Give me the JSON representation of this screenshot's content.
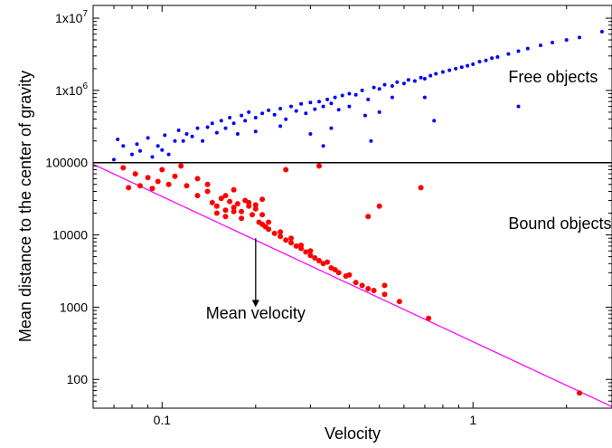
{
  "chart_data": {
    "type": "scatter",
    "title": "",
    "xlabel": "Velocity",
    "ylabel": "Mean distance to the center of gravity",
    "xscale": "log",
    "yscale": "log",
    "xlim": [
      0.06,
      2.8
    ],
    "ylim": [
      40,
      15000000
    ],
    "grid": false,
    "x_ticks": [
      {
        "value": 0.1,
        "label": "0.1"
      },
      {
        "value": 1,
        "label": "1"
      }
    ],
    "y_ticks": [
      {
        "value": 100,
        "label": "100"
      },
      {
        "value": 1000,
        "label": "1000"
      },
      {
        "value": 10000,
        "label": "10000"
      },
      {
        "value": 100000,
        "label": "100000"
      },
      {
        "value": 1000000,
        "label": "1x10",
        "exp": "6"
      },
      {
        "value": 10000000,
        "label": "1x10",
        "exp": "7"
      }
    ],
    "threshold": {
      "y": 100000,
      "color": "#000000"
    },
    "fit_line": {
      "points": [
        [
          0.06,
          95000
        ],
        [
          2.8,
          42
        ]
      ],
      "color": "#ff00ff"
    },
    "annotations": [
      {
        "text": "Free objects",
        "x": 1.3,
        "y": 1300000
      },
      {
        "text": "Bound objects",
        "x": 1.3,
        "y": 12000
      },
      {
        "text": "Mean velocity",
        "x": 0.2,
        "y": 700
      }
    ],
    "mean_velocity_arrow": {
      "x": 0.2,
      "y_from": 9000,
      "y_to": 1000
    },
    "series": [
      {
        "color": "#0000ff",
        "marker_radius": 2,
        "points": [
          [
            0.07,
            110000
          ],
          [
            0.072,
            210000
          ],
          [
            0.075,
            170000
          ],
          [
            0.08,
            130000
          ],
          [
            0.083,
            180000
          ],
          [
            0.085,
            145000
          ],
          [
            0.09,
            220000
          ],
          [
            0.093,
            120000
          ],
          [
            0.097,
            170000
          ],
          [
            0.1,
            150000
          ],
          [
            0.102,
            240000
          ],
          [
            0.105,
            130000
          ],
          [
            0.11,
            200000
          ],
          [
            0.113,
            280000
          ],
          [
            0.117,
            200000
          ],
          [
            0.12,
            250000
          ],
          [
            0.125,
            230000
          ],
          [
            0.13,
            300000
          ],
          [
            0.135,
            200000
          ],
          [
            0.14,
            310000
          ],
          [
            0.145,
            350000
          ],
          [
            0.15,
            260000
          ],
          [
            0.155,
            380000
          ],
          [
            0.16,
            300000
          ],
          [
            0.165,
            420000
          ],
          [
            0.17,
            350000
          ],
          [
            0.175,
            250000
          ],
          [
            0.18,
            450000
          ],
          [
            0.185,
            380000
          ],
          [
            0.19,
            500000
          ],
          [
            0.2,
            420000
          ],
          [
            0.21,
            480000
          ],
          [
            0.22,
            530000
          ],
          [
            0.23,
            460000
          ],
          [
            0.24,
            560000
          ],
          [
            0.25,
            400000
          ],
          [
            0.26,
            600000
          ],
          [
            0.27,
            520000
          ],
          [
            0.28,
            650000
          ],
          [
            0.29,
            480000
          ],
          [
            0.3,
            680000
          ],
          [
            0.31,
            550000
          ],
          [
            0.32,
            700000
          ],
          [
            0.33,
            600000
          ],
          [
            0.34,
            750000
          ],
          [
            0.35,
            660000
          ],
          [
            0.36,
            800000
          ],
          [
            0.37,
            540000
          ],
          [
            0.38,
            850000
          ],
          [
            0.4,
            900000
          ],
          [
            0.42,
            870000
          ],
          [
            0.44,
            1000000
          ],
          [
            0.46,
            750000
          ],
          [
            0.48,
            1100000
          ],
          [
            0.5,
            1050000
          ],
          [
            0.52,
            1200000
          ],
          [
            0.55,
            1150000
          ],
          [
            0.57,
            1300000
          ],
          [
            0.6,
            1250000
          ],
          [
            0.62,
            1400000
          ],
          [
            0.65,
            1350000
          ],
          [
            0.68,
            1500000
          ],
          [
            0.7,
            1450000
          ],
          [
            0.73,
            1600000
          ],
          [
            0.76,
            1700000
          ],
          [
            0.8,
            1800000
          ],
          [
            0.84,
            1900000
          ],
          [
            0.88,
            2000000
          ],
          [
            0.92,
            2100000
          ],
          [
            0.96,
            2200000
          ],
          [
            1.0,
            2300000
          ],
          [
            1.05,
            2500000
          ],
          [
            1.1,
            2600000
          ],
          [
            1.15,
            2800000
          ],
          [
            1.2,
            2900000
          ],
          [
            1.3,
            3200000
          ],
          [
            1.4,
            3500000
          ],
          [
            1.5,
            3800000
          ],
          [
            1.65,
            4200000
          ],
          [
            1.8,
            4600000
          ],
          [
            2.0,
            5000000
          ],
          [
            2.2,
            5400000
          ],
          [
            2.6,
            6500000
          ],
          [
            0.2,
            270000
          ],
          [
            0.24,
            320000
          ],
          [
            0.3,
            250000
          ],
          [
            0.35,
            300000
          ],
          [
            0.4,
            600000
          ],
          [
            0.45,
            450000
          ],
          [
            0.33,
            170000
          ],
          [
            0.47,
            200000
          ],
          [
            0.5,
            500000
          ],
          [
            0.55,
            800000
          ],
          [
            0.7,
            800000
          ],
          [
            0.75,
            380000
          ],
          [
            1.4,
            600000
          ]
        ]
      },
      {
        "color": "#ff0000",
        "marker_radius": 3,
        "points": [
          [
            0.075,
            85000
          ],
          [
            0.078,
            45000
          ],
          [
            0.082,
            70000
          ],
          [
            0.085,
            48000
          ],
          [
            0.09,
            62000
          ],
          [
            0.093,
            44000
          ],
          [
            0.097,
            55000
          ],
          [
            0.1,
            80000
          ],
          [
            0.105,
            50000
          ],
          [
            0.11,
            65000
          ],
          [
            0.115,
            90000
          ],
          [
            0.12,
            48000
          ],
          [
            0.13,
            35000
          ],
          [
            0.14,
            40000
          ],
          [
            0.145,
            28000
          ],
          [
            0.15,
            25000
          ],
          [
            0.155,
            32000
          ],
          [
            0.16,
            22000
          ],
          [
            0.165,
            29000
          ],
          [
            0.17,
            24000
          ],
          [
            0.175,
            27000
          ],
          [
            0.18,
            21000
          ],
          [
            0.185,
            30000
          ],
          [
            0.19,
            25000
          ],
          [
            0.195,
            19000
          ],
          [
            0.2,
            23000
          ],
          [
            0.205,
            15000
          ],
          [
            0.21,
            14000
          ],
          [
            0.215,
            13000
          ],
          [
            0.22,
            12000
          ],
          [
            0.23,
            10500
          ],
          [
            0.24,
            9500
          ],
          [
            0.25,
            8500
          ],
          [
            0.26,
            7800
          ],
          [
            0.27,
            7000
          ],
          [
            0.28,
            6500
          ],
          [
            0.29,
            5800
          ],
          [
            0.3,
            5200
          ],
          [
            0.31,
            4800
          ],
          [
            0.32,
            4400
          ],
          [
            0.33,
            4000
          ],
          [
            0.35,
            3500
          ],
          [
            0.37,
            3000
          ],
          [
            0.39,
            2700
          ],
          [
            0.42,
            2200
          ],
          [
            0.46,
            1800
          ],
          [
            0.52,
            1500
          ],
          [
            0.58,
            1200
          ],
          [
            0.72,
            700
          ],
          [
            2.2,
            65
          ],
          [
            0.15,
            20000
          ],
          [
            0.16,
            18000
          ],
          [
            0.17,
            21000
          ],
          [
            0.18,
            17000
          ],
          [
            0.19,
            28000
          ],
          [
            0.2,
            26000
          ],
          [
            0.21,
            31000
          ],
          [
            0.16,
            35000
          ],
          [
            0.14,
            50000
          ],
          [
            0.13,
            60000
          ],
          [
            0.17,
            42000
          ],
          [
            0.25,
            80000
          ],
          [
            0.32,
            90000
          ],
          [
            0.5,
            25000
          ],
          [
            0.52,
            2000
          ],
          [
            0.46,
            18000
          ],
          [
            0.68,
            45000
          ],
          [
            0.21,
            19000
          ],
          [
            0.22,
            15000
          ],
          [
            0.24,
            11000
          ],
          [
            0.26,
            9000
          ],
          [
            0.28,
            7200
          ],
          [
            0.3,
            6000
          ],
          [
            0.34,
            4200
          ],
          [
            0.36,
            3300
          ],
          [
            0.4,
            2800
          ],
          [
            0.44,
            2000
          ],
          [
            0.48,
            1700
          ]
        ]
      }
    ]
  }
}
